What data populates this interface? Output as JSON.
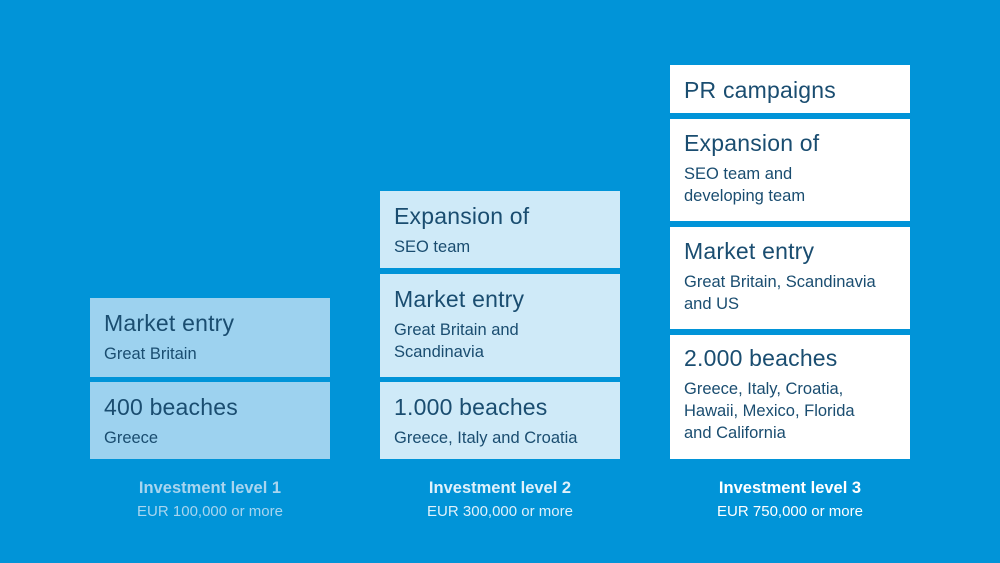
{
  "colors": {
    "background": "#0194d8",
    "level1_box": "#9dd2ef",
    "level2_box": "#cfeaf8",
    "level3_box": "#ffffff",
    "text": "#1a4d70"
  },
  "columns": [
    {
      "level": "Investment level 1",
      "amount": "EUR 100,000 or more",
      "boxes": [
        {
          "title": "Market entry",
          "sub": "Great Britain"
        },
        {
          "title": "400 beaches",
          "sub": "Greece"
        }
      ]
    },
    {
      "level": "Investment level 2",
      "amount": "EUR 300,000 or more",
      "boxes": [
        {
          "title": "Expansion of",
          "sub": "SEO team"
        },
        {
          "title": "Market entry",
          "sub": "Great Britain and\nScandinavia"
        },
        {
          "title": "1.000 beaches",
          "sub": "Greece, Italy and Croatia"
        }
      ]
    },
    {
      "level": "Investment level 3",
      "amount": "EUR 750,000 or more",
      "boxes": [
        {
          "title": "PR campaigns"
        },
        {
          "title": "Expansion of",
          "sub": "SEO team and\ndeveloping team"
        },
        {
          "title": "Market entry",
          "sub": "Great Britain, Scandinavia\nand US"
        },
        {
          "title": "2.000 beaches",
          "sub": "Greece, Italy, Croatia,\nHawaii, Mexico, Florida\nand California"
        }
      ]
    }
  ]
}
